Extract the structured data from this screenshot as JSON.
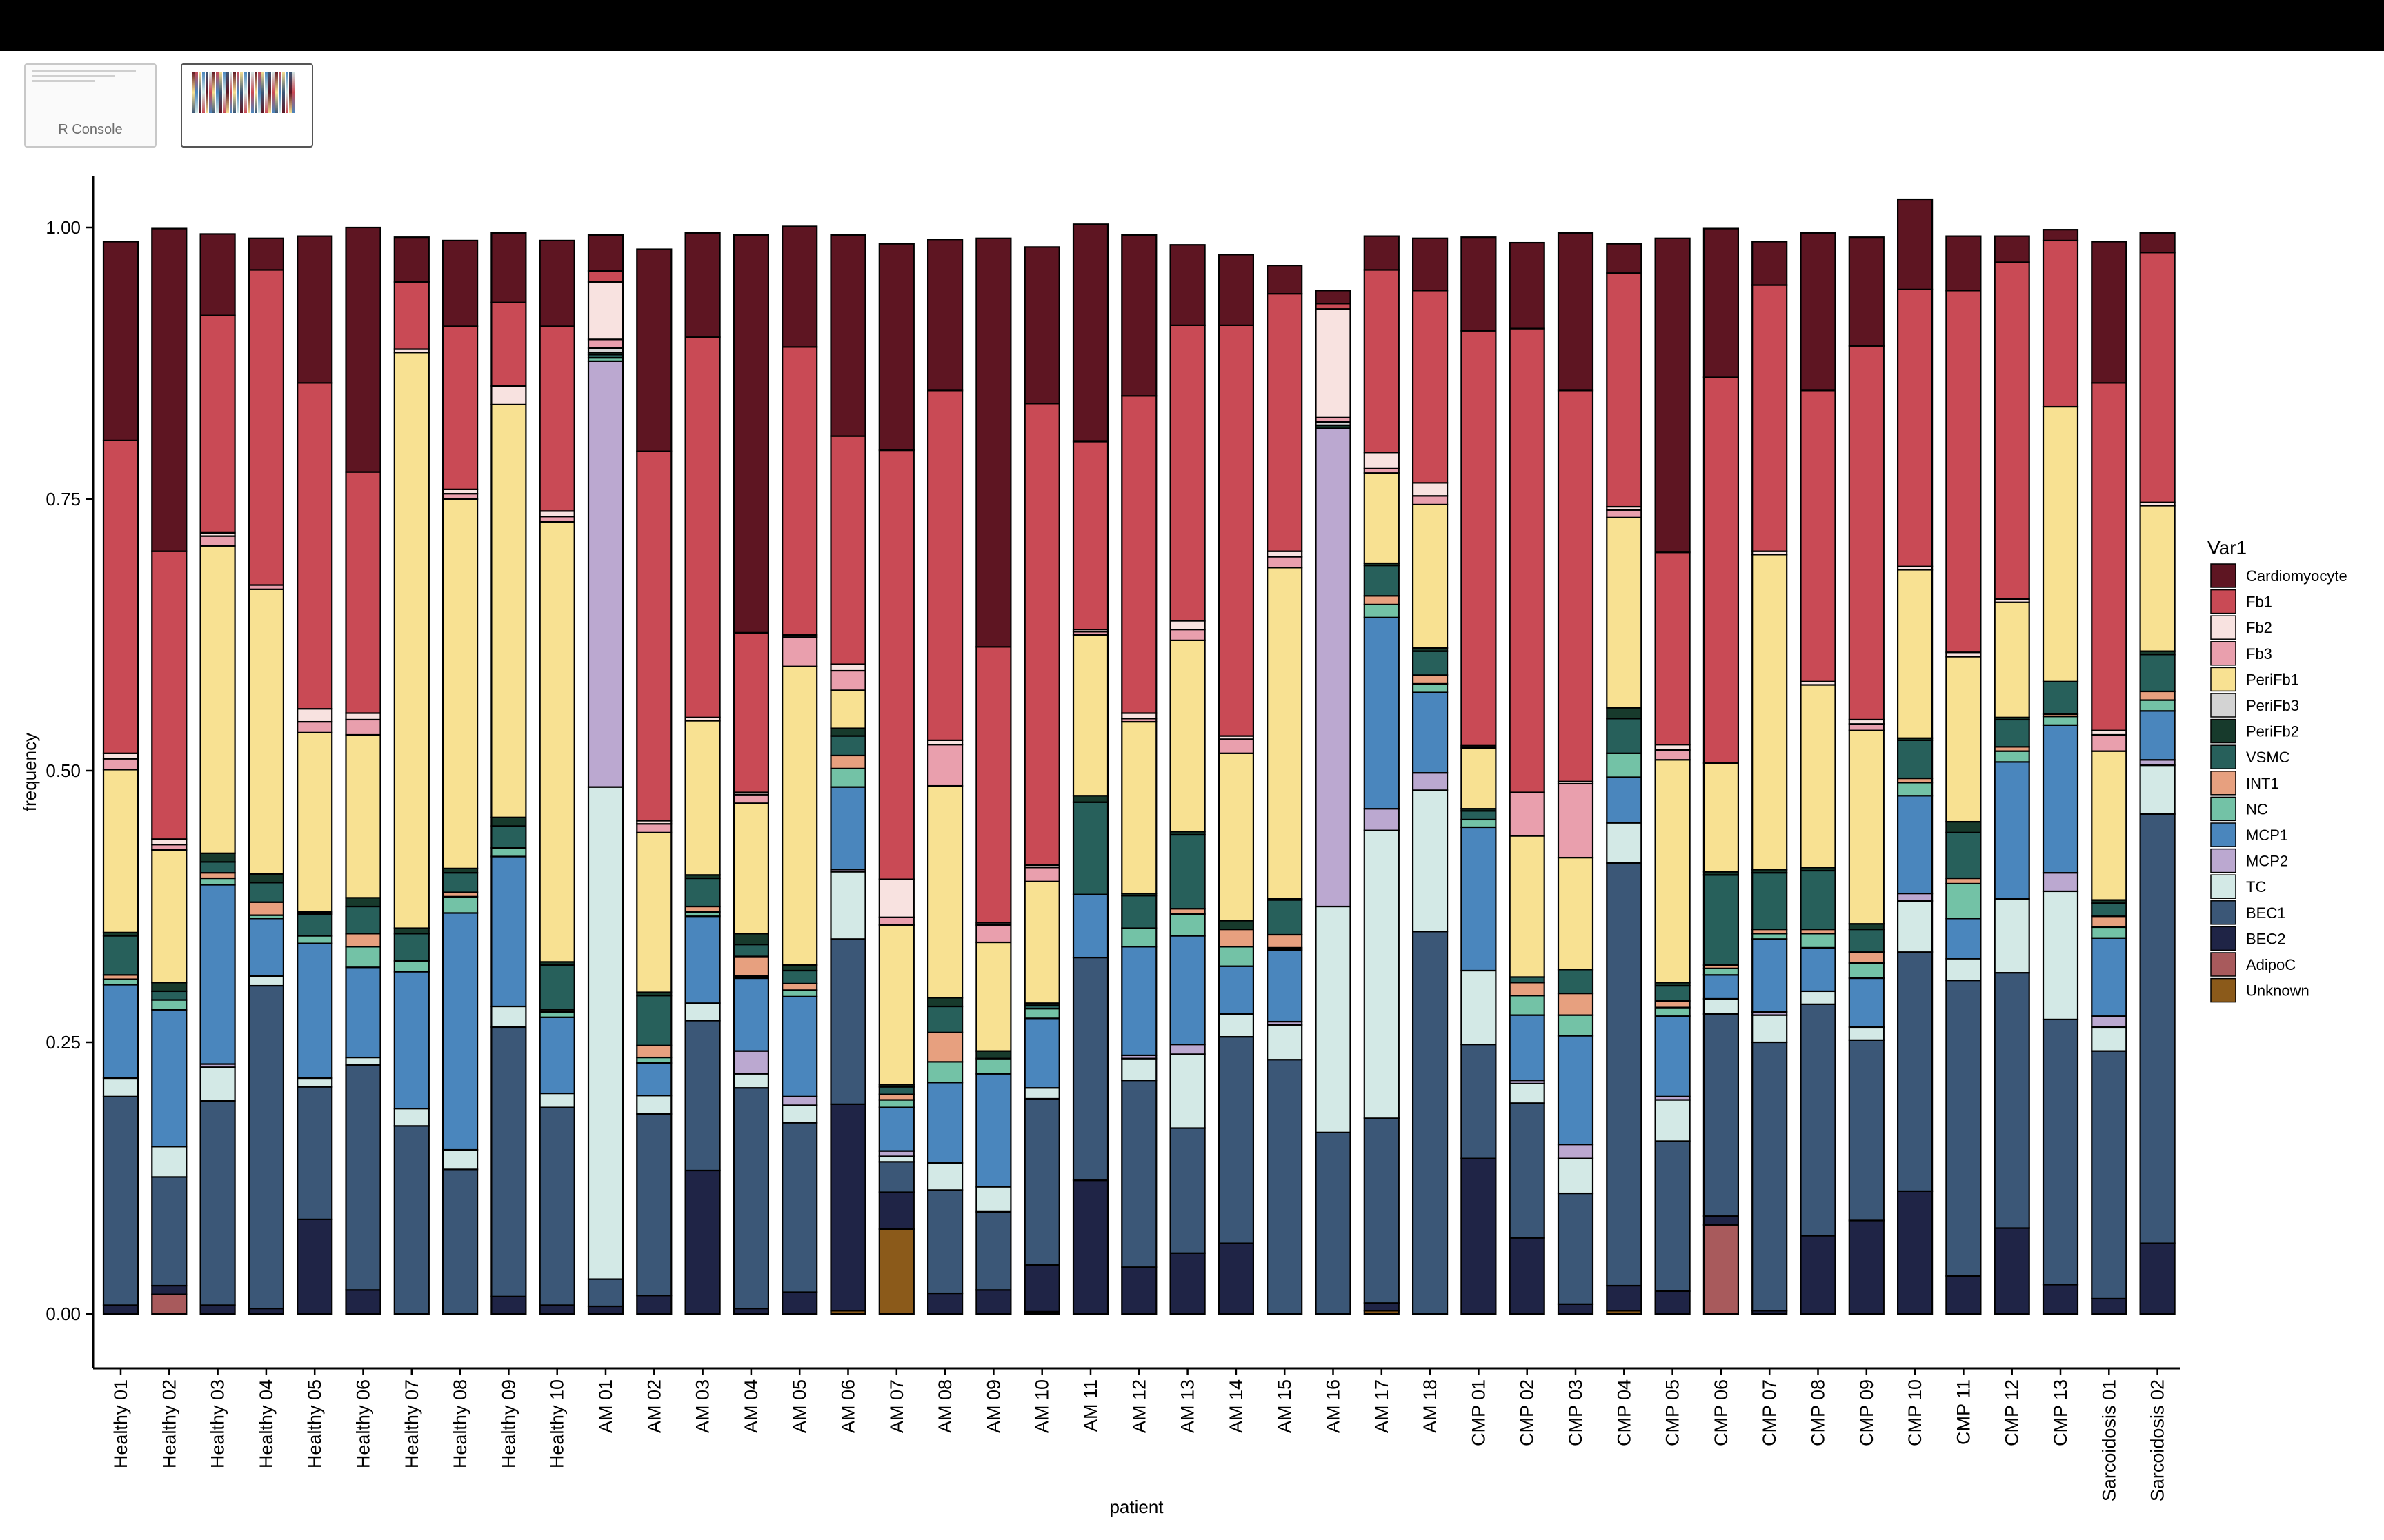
{
  "window": {
    "thumbnails": [
      {
        "label": "R Console"
      },
      {
        "label": ""
      }
    ]
  },
  "colors": {
    "Cardiomyocyte": "#5e1522",
    "Fb1": "#c94a55",
    "Fb2": "#f8e2e0",
    "Fb3": "#e99fad",
    "PeriFb1": "#f8e192",
    "PeriFb2": "#173a2c",
    "PeriFb3": "#d3d3d3",
    "VSMC": "#27605b",
    "INT1": "#e7a07f",
    "NC": "#73c2a6",
    "MCP1": "#4a86bd",
    "MCP2": "#bba8d0",
    "TC": "#d3e9e6",
    "BEC1": "#3b5777",
    "BEC2": "#1f2446",
    "AdipoC": "#a85a5c",
    "Unknown": "#8b5a1a"
  },
  "chart_data": {
    "type": "bar",
    "stacked": true,
    "title": "",
    "xlabel": "patient",
    "ylabel": "frequency",
    "ylim": [
      0,
      1
    ],
    "yticks": [
      "0.00",
      "0.25",
      "0.50",
      "0.75",
      "1.00"
    ],
    "grid": false,
    "legend": {
      "title": "Var1",
      "position": "right"
    },
    "categories": [
      "Healthy 01",
      "Healthy 02",
      "Healthy 03",
      "Healthy 04",
      "Healthy 05",
      "Healthy 06",
      "Healthy 07",
      "Healthy 08",
      "Healthy 09",
      "Healthy 10",
      "AM 01",
      "AM 02",
      "AM 03",
      "AM 04",
      "AM 05",
      "AM 06",
      "AM 07",
      "AM 08",
      "AM 09",
      "AM 10",
      "AM 11",
      "AM 12",
      "AM 13",
      "AM 14",
      "AM 15",
      "AM 16",
      "AM 17",
      "AM 18",
      "CMP 01",
      "CMP 02",
      "CMP 03",
      "CMP 04",
      "CMP 05",
      "CMP 06",
      "CMP 07",
      "CMP 08",
      "CMP 09",
      "CMP 10",
      "CMP 11",
      "CMP 12",
      "CMP 13",
      "Sarcoidosis 01",
      "Sarcoidosis 02"
    ],
    "series": [
      {
        "name": "Unknown",
        "values": [
          0,
          0,
          0,
          0,
          0,
          0,
          0,
          0,
          0,
          0,
          0,
          0,
          0,
          0,
          0,
          0.003,
          0.078,
          0,
          0,
          0.002,
          0,
          0,
          0,
          0,
          0,
          0,
          0.003,
          0,
          0,
          0,
          0,
          0.003,
          0,
          0,
          0,
          0,
          0,
          0,
          0,
          0,
          0,
          0,
          0
        ]
      },
      {
        "name": "AdipoC",
        "values": [
          0,
          0.018,
          0,
          0,
          0,
          0,
          0,
          0,
          0,
          0,
          0,
          0,
          0,
          0,
          0,
          0,
          0,
          0,
          0,
          0,
          0,
          0,
          0,
          0,
          0,
          0,
          0,
          0,
          0,
          0,
          0,
          0,
          0,
          0.082,
          0,
          0,
          0,
          0,
          0,
          0,
          0,
          0,
          0
        ]
      },
      {
        "name": "BEC2",
        "values": [
          0.008,
          0.008,
          0.008,
          0.005,
          0.087,
          0.022,
          0,
          0,
          0.016,
          0.008,
          0.007,
          0.017,
          0.132,
          0.005,
          0.02,
          0.19,
          0.034,
          0.019,
          0.022,
          0.043,
          0.123,
          0.043,
          0.056,
          0.065,
          0,
          0,
          0.007,
          0,
          0.143,
          0.07,
          0.009,
          0.023,
          0.021,
          0.008,
          0.003,
          0.072,
          0.086,
          0.113,
          0.035,
          0.079,
          0.027,
          0.014,
          0.065
        ]
      },
      {
        "name": "BEC1",
        "values": [
          0.192,
          0.1,
          0.188,
          0.297,
          0.122,
          0.207,
          0.173,
          0.133,
          0.248,
          0.182,
          0.025,
          0.167,
          0.138,
          0.203,
          0.156,
          0.152,
          0.028,
          0.095,
          0.072,
          0.153,
          0.205,
          0.172,
          0.115,
          0.19,
          0.234,
          0.167,
          0.17,
          0.352,
          0.105,
          0.124,
          0.102,
          0.389,
          0.138,
          0.186,
          0.247,
          0.213,
          0.166,
          0.22,
          0.272,
          0.235,
          0.244,
          0.228,
          0.395
        ]
      },
      {
        "name": "TC",
        "values": [
          0.017,
          0.028,
          0.031,
          0.009,
          0.008,
          0.007,
          0.016,
          0.018,
          0.019,
          0.013,
          0.453,
          0.017,
          0.016,
          0.013,
          0.016,
          0.062,
          0.005,
          0.025,
          0.023,
          0.01,
          0,
          0.02,
          0.068,
          0.021,
          0.032,
          0.208,
          0.265,
          0.13,
          0.068,
          0.018,
          0.032,
          0.037,
          0.038,
          0.014,
          0.025,
          0.012,
          0.012,
          0.047,
          0.02,
          0.068,
          0.118,
          0.022,
          0.045
        ]
      },
      {
        "name": "MCP2",
        "values": [
          0,
          0,
          0.003,
          0,
          0,
          0,
          0,
          0,
          0,
          0,
          0.392,
          0,
          0,
          0.021,
          0.008,
          0.002,
          0.005,
          0,
          0,
          0,
          0,
          0.003,
          0.009,
          0,
          0.003,
          0.44,
          0.02,
          0.016,
          0,
          0.003,
          0.013,
          0,
          0.003,
          0,
          0.003,
          0,
          0,
          0.007,
          0,
          0,
          0.017,
          0.01,
          0.005
        ]
      },
      {
        "name": "MCP1",
        "values": [
          0.086,
          0.126,
          0.165,
          0.053,
          0.124,
          0.083,
          0.126,
          0.218,
          0.138,
          0.07,
          0,
          0.03,
          0.08,
          0.067,
          0.092,
          0.076,
          0.04,
          0.074,
          0.104,
          0.064,
          0.058,
          0.1,
          0.1,
          0.044,
          0.066,
          0,
          0.176,
          0.074,
          0.132,
          0.06,
          0.1,
          0.042,
          0.074,
          0.022,
          0.067,
          0.04,
          0.045,
          0.09,
          0.037,
          0.126,
          0.136,
          0.072,
          0.045
        ]
      },
      {
        "name": "NC",
        "values": [
          0.005,
          0.009,
          0.006,
          0.003,
          0.007,
          0.019,
          0.01,
          0.015,
          0.008,
          0.005,
          0.003,
          0.005,
          0.004,
          0.002,
          0.006,
          0.017,
          0.007,
          0.019,
          0.014,
          0.009,
          0,
          0.017,
          0.02,
          0.018,
          0.002,
          0,
          0.012,
          0.008,
          0.007,
          0.018,
          0.019,
          0.022,
          0.008,
          0.006,
          0.005,
          0.013,
          0.014,
          0.012,
          0.032,
          0.01,
          0.008,
          0.01,
          0.01
        ]
      },
      {
        "name": "INT1",
        "values": [
          0.004,
          0,
          0.005,
          0.012,
          0,
          0.012,
          0,
          0.004,
          0,
          0.002,
          0,
          0.011,
          0.005,
          0.018,
          0.006,
          0.012,
          0.005,
          0.027,
          0,
          0,
          0,
          0,
          0.005,
          0.016,
          0.012,
          0,
          0.008,
          0.008,
          0,
          0.012,
          0.02,
          0,
          0.006,
          0.003,
          0.004,
          0.004,
          0.01,
          0.004,
          0.005,
          0.004,
          0.002,
          0.01,
          0.008
        ]
      },
      {
        "name": "VSMC",
        "values": [
          0.036,
          0.008,
          0.01,
          0.018,
          0.02,
          0.025,
          0.025,
          0.018,
          0.02,
          0.041,
          0.003,
          0.046,
          0.026,
          0.011,
          0.012,
          0.018,
          0.007,
          0.024,
          0,
          0.003,
          0.085,
          0.03,
          0.068,
          0,
          0.032,
          0,
          0.028,
          0.022,
          0.008,
          0.005,
          0.022,
          0.032,
          0.014,
          0.083,
          0.052,
          0.054,
          0.021,
          0.035,
          0.042,
          0.025,
          0.03,
          0.012,
          0.034
        ]
      },
      {
        "name": "PeriFb2",
        "values": [
          0.003,
          0.008,
          0.008,
          0.008,
          0.002,
          0.008,
          0.005,
          0.004,
          0.008,
          0.003,
          0.002,
          0.003,
          0.003,
          0.01,
          0.005,
          0.007,
          0.002,
          0.008,
          0.007,
          0.002,
          0.006,
          0.002,
          0.003,
          0.008,
          0.001,
          0.003,
          0.002,
          0.003,
          0.002,
          0,
          0,
          0.01,
          0.003,
          0.003,
          0.003,
          0.003,
          0.005,
          0.002,
          0.01,
          0.002,
          0,
          0.003,
          0.003
        ]
      },
      {
        "name": "PeriFb3",
        "values": [
          0,
          0,
          0,
          0,
          0,
          0,
          0,
          0,
          0,
          0,
          0.004,
          0,
          0,
          0,
          0,
          0,
          0,
          0,
          0,
          0,
          0,
          0,
          0,
          0,
          0,
          0.003,
          0,
          0,
          0,
          0,
          0,
          0,
          0,
          0,
          0,
          0,
          0,
          0,
          0,
          0,
          0,
          0,
          0
        ]
      },
      {
        "name": "PeriFb1",
        "values": [
          0.15,
          0.122,
          0.283,
          0.262,
          0.165,
          0.15,
          0.53,
          0.34,
          0.38,
          0.405,
          0,
          0.147,
          0.142,
          0.12,
          0.275,
          0.035,
          0.147,
          0.195,
          0.1,
          0.112,
          0.148,
          0.158,
          0.176,
          0.154,
          0.305,
          0,
          0.083,
          0.132,
          0.056,
          0.13,
          0.103,
          0.175,
          0.205,
          0.1,
          0.29,
          0.168,
          0.178,
          0.155,
          0.152,
          0.106,
          0.253,
          0.137,
          0.134
        ]
      },
      {
        "name": "Fb3",
        "values": [
          0.01,
          0.005,
          0.009,
          0.004,
          0.01,
          0.014,
          0,
          0.005,
          0,
          0.005,
          0.008,
          0.008,
          0,
          0.008,
          0.027,
          0.018,
          0.007,
          0.038,
          0.016,
          0.013,
          0.003,
          0.003,
          0.01,
          0.013,
          0.01,
          0.004,
          0.004,
          0.008,
          0.002,
          0.04,
          0.068,
          0.007,
          0.009,
          0,
          0,
          0,
          0.006,
          0,
          0,
          0,
          0,
          0.015,
          0
        ]
      },
      {
        "name": "Fb2",
        "values": [
          0.005,
          0.005,
          0.003,
          0,
          0.012,
          0.006,
          0.003,
          0.004,
          0.017,
          0.005,
          0.053,
          0.003,
          0.003,
          0.002,
          0.002,
          0.006,
          0.035,
          0.004,
          0.002,
          0.002,
          0.002,
          0.005,
          0.008,
          0.003,
          0.005,
          0.1,
          0.015,
          0.012,
          0,
          0,
          0.002,
          0.003,
          0.005,
          0,
          0.003,
          0.003,
          0.004,
          0.003,
          0.004,
          0.003,
          0,
          0.004,
          0.003
        ]
      },
      {
        "name": "Fb1",
        "values": [
          0.288,
          0.265,
          0.2,
          0.29,
          0.3,
          0.222,
          0.062,
          0.15,
          0.077,
          0.17,
          0.01,
          0.34,
          0.35,
          0.147,
          0.265,
          0.21,
          0.395,
          0.322,
          0.254,
          0.425,
          0.173,
          0.292,
          0.272,
          0.378,
          0.237,
          0.005,
          0.168,
          0.177,
          0.382,
          0.427,
          0.36,
          0.215,
          0.177,
          0.355,
          0.245,
          0.268,
          0.344,
          0.255,
          0.333,
          0.31,
          0.153,
          0.32,
          0.23
        ]
      },
      {
        "name": "Cardiomyocyte",
        "values": [
          0.183,
          0.297,
          0.075,
          0.029,
          0.135,
          0.225,
          0.041,
          0.079,
          0.064,
          0.079,
          0.033,
          0.186,
          0.096,
          0.366,
          0.111,
          0.185,
          0.19,
          0.139,
          0.376,
          0.144,
          0.2,
          0.148,
          0.074,
          0.065,
          0.026,
          0.012,
          0.031,
          0.048,
          0.086,
          0.079,
          0.145,
          0.027,
          0.289,
          0.137,
          0.04,
          0.145,
          0.1,
          0.083,
          0.05,
          0.024,
          0.01,
          0.13,
          0.018
        ]
      }
    ]
  }
}
